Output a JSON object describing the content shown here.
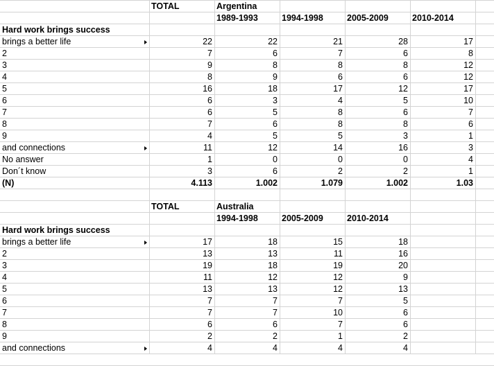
{
  "blocks": [
    {
      "total_label": "TOTAL",
      "country": "Argentina",
      "periods": [
        "1989-1993",
        "1994-1998",
        "2005-2009",
        "2010-2014"
      ],
      "question": "Hard work brings success",
      "rows": [
        {
          "label": "brings a better life",
          "has_arrow": true,
          "values": [
            "22",
            "22",
            "21",
            "28",
            "17"
          ]
        },
        {
          "label": "2",
          "values": [
            "7",
            "6",
            "7",
            "6",
            "8"
          ]
        },
        {
          "label": "3",
          "values": [
            "9",
            "8",
            "8",
            "8",
            "12"
          ]
        },
        {
          "label": "4",
          "values": [
            "8",
            "9",
            "6",
            "6",
            "12"
          ]
        },
        {
          "label": "5",
          "values": [
            "16",
            "18",
            "17",
            "12",
            "17"
          ]
        },
        {
          "label": "6",
          "values": [
            "6",
            "3",
            "4",
            "5",
            "10"
          ]
        },
        {
          "label": "7",
          "values": [
            "6",
            "5",
            "8",
            "6",
            "7"
          ]
        },
        {
          "label": "8",
          "values": [
            "7",
            "6",
            "8",
            "8",
            "6"
          ]
        },
        {
          "label": "9",
          "values": [
            "4",
            "5",
            "5",
            "3",
            "1"
          ]
        },
        {
          "label": "and connections",
          "has_arrow": true,
          "values": [
            "11",
            "12",
            "14",
            "16",
            "3"
          ]
        },
        {
          "label": "No answer",
          "values": [
            "1",
            "0",
            "0",
            "0",
            "4"
          ]
        },
        {
          "label": "Don´t know",
          "values": [
            "3",
            "6",
            "2",
            "2",
            "1"
          ]
        },
        {
          "label": "(N)",
          "bold": true,
          "values": [
            "4.113",
            "1.002",
            "1.079",
            "1.002",
            "1.03"
          ]
        }
      ]
    },
    {
      "total_label": "TOTAL",
      "country": "Australia",
      "periods": [
        "1994-1998",
        "2005-2009",
        "2010-2014"
      ],
      "question": "Hard work brings success",
      "rows": [
        {
          "label": "brings a better life",
          "has_arrow": true,
          "values": [
            "17",
            "18",
            "15",
            "18"
          ]
        },
        {
          "label": "2",
          "values": [
            "13",
            "13",
            "11",
            "16"
          ]
        },
        {
          "label": "3",
          "values": [
            "19",
            "18",
            "19",
            "20"
          ]
        },
        {
          "label": "4",
          "values": [
            "11",
            "12",
            "12",
            "9"
          ]
        },
        {
          "label": "5",
          "values": [
            "13",
            "13",
            "12",
            "13"
          ]
        },
        {
          "label": "6",
          "values": [
            "7",
            "7",
            "7",
            "5"
          ]
        },
        {
          "label": "7",
          "values": [
            "7",
            "7",
            "10",
            "6"
          ]
        },
        {
          "label": "8",
          "values": [
            "6",
            "6",
            "7",
            "6"
          ]
        },
        {
          "label": "9",
          "values": [
            "2",
            "2",
            "1",
            "2"
          ]
        },
        {
          "label": "and connections",
          "has_arrow": true,
          "values": [
            "4",
            "4",
            "4",
            "4"
          ]
        }
      ]
    }
  ]
}
